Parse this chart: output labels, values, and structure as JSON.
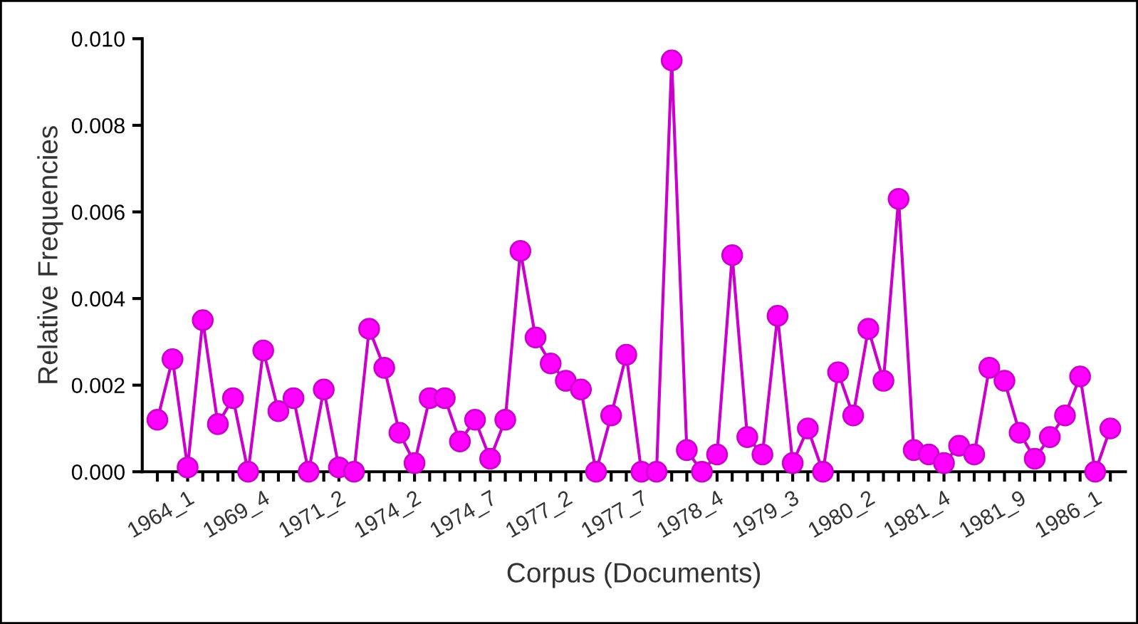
{
  "chart_data": {
    "type": "line",
    "xlabel": "Corpus (Documents)",
    "ylabel": "Relative Frequencies",
    "categories": [
      null,
      null,
      "1964_1",
      null,
      null,
      null,
      null,
      "1969_4",
      null,
      null,
      null,
      null,
      "1971_2",
      null,
      null,
      null,
      null,
      "1974_2",
      null,
      null,
      null,
      null,
      "1974_7",
      null,
      null,
      null,
      null,
      "1977_2",
      null,
      null,
      null,
      null,
      "1977_7",
      null,
      null,
      null,
      null,
      "1978_4",
      null,
      null,
      null,
      null,
      "1979_3",
      null,
      null,
      null,
      null,
      "1980_2",
      null,
      null,
      null,
      null,
      "1981_4",
      null,
      null,
      null,
      null,
      "1981_9",
      null,
      null,
      null,
      null,
      "1986_1",
      null
    ],
    "series": [
      {
        "color": "#cc00cc",
        "values": [
          0.0012,
          0.0026,
          0.0001,
          0.0035,
          0.0011,
          0.0017,
          0.0,
          0.0028,
          0.0014,
          0.0017,
          0.0,
          0.0019,
          0.0001,
          0.0,
          0.0033,
          0.0024,
          0.0009,
          0.0002,
          0.0017,
          0.0017,
          0.0007,
          0.0012,
          0.0003,
          0.0012,
          0.0051,
          0.0031,
          0.0025,
          0.0021,
          0.0019,
          0.0,
          0.0013,
          0.0027,
          0.0,
          0.0,
          0.0095,
          0.0005,
          0.0,
          0.0004,
          0.005,
          0.0008,
          0.0004,
          0.0036,
          0.0002,
          0.001,
          0.0,
          0.0023,
          0.0013,
          0.0033,
          0.0021,
          0.0063,
          0.0005,
          0.0004,
          0.0002,
          0.0006,
          0.0004,
          0.0024,
          0.0021,
          0.0009,
          0.0003,
          0.0008,
          0.0013,
          0.0022,
          0.0,
          0.001
        ]
      }
    ],
    "ylim": [
      0,
      0.01
    ],
    "yticks": [
      {
        "value": 0,
        "label": "0.000"
      },
      {
        "value": 0.002,
        "label": "0.002"
      },
      {
        "value": 0.004,
        "label": "0.004"
      },
      {
        "value": 0.006,
        "label": "0.006"
      },
      {
        "value": 0.008,
        "label": "0.008"
      },
      {
        "value": 0.01,
        "label": "0.010"
      }
    ],
    "marker": "circle",
    "line_style": "solid",
    "grid": false
  }
}
